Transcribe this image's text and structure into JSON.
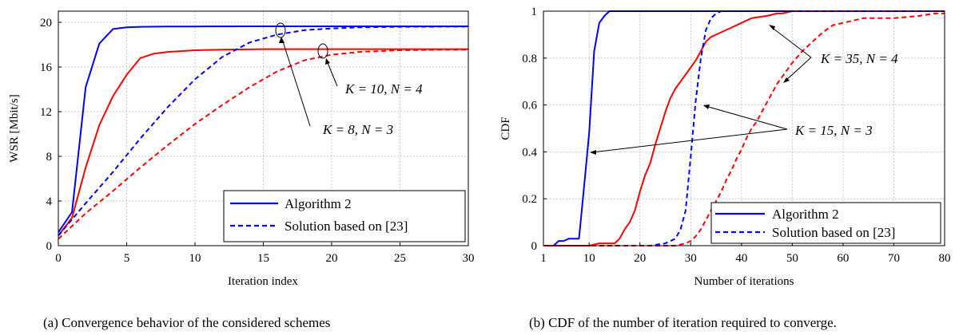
{
  "chart_data": [
    {
      "type": "line",
      "caption": "(a) Convergence behavior of the considered schemes",
      "xlabel": "Iteration index",
      "ylabel": "WSR [Mbit/s]",
      "xlim": [
        0,
        30
      ],
      "ylim": [
        0,
        21
      ],
      "xticks": [
        0,
        5,
        10,
        15,
        20,
        25,
        30
      ],
      "yticks": [
        0,
        4,
        8,
        12,
        16,
        20
      ],
      "grid": true,
      "legend_position": "bottom-right",
      "legend": [
        "Algorithm 2",
        "Solution based on [23]"
      ],
      "annotations": [
        "K = 10, N = 4",
        "K = 8, N = 3"
      ],
      "series": [
        {
          "legend": "Algorithm 2",
          "config": "K = 8, N = 3",
          "color": "#0000ff",
          "dash": "solid",
          "x": [
            0,
            1,
            2,
            3,
            4,
            5,
            6,
            8,
            10,
            15,
            20,
            25,
            30
          ],
          "y": [
            1.2,
            3.0,
            14.2,
            18.1,
            19.4,
            19.55,
            19.6,
            19.62,
            19.63,
            19.64,
            19.64,
            19.64,
            19.64
          ]
        },
        {
          "legend": "Algorithm 2",
          "config": "K = 10, N = 4",
          "color": "#ff0000",
          "dash": "solid",
          "x": [
            0,
            1,
            2,
            3,
            4,
            5,
            6,
            7,
            8,
            10,
            12,
            15,
            20,
            25,
            30
          ],
          "y": [
            0.9,
            2.5,
            7.0,
            10.8,
            13.4,
            15.3,
            16.8,
            17.2,
            17.35,
            17.5,
            17.55,
            17.6,
            17.6,
            17.6,
            17.6
          ]
        },
        {
          "legend": "Solution based on [23]",
          "config": "K = 8, N = 3",
          "color": "#0000ff",
          "dash": "dashed",
          "x": [
            0,
            2,
            4,
            6,
            8,
            10,
            12,
            14,
            16,
            18,
            20,
            22,
            25,
            30
          ],
          "y": [
            0.9,
            3.8,
            6.6,
            9.6,
            12.4,
            14.9,
            16.9,
            18.2,
            18.9,
            19.3,
            19.45,
            19.55,
            19.6,
            19.62
          ]
        },
        {
          "legend": "Solution based on [23]",
          "config": "K = 10, N = 4",
          "color": "#ff0000",
          "dash": "dashed",
          "x": [
            0,
            2,
            4,
            6,
            8,
            10,
            12,
            14,
            16,
            18,
            20,
            22,
            25,
            28,
            30
          ],
          "y": [
            0.6,
            2.9,
            4.9,
            7.0,
            9.0,
            10.9,
            12.6,
            14.2,
            15.6,
            16.6,
            17.1,
            17.35,
            17.5,
            17.55,
            17.55
          ]
        }
      ]
    },
    {
      "type": "line",
      "caption": "(b) CDF of the number of iteration required to converge.",
      "xlabel": "Number of iterations",
      "ylabel": "CDF",
      "xlim": [
        1,
        80
      ],
      "ylim": [
        0,
        1
      ],
      "xticks": [
        1,
        10,
        20,
        30,
        40,
        50,
        60,
        70,
        80
      ],
      "yticks": [
        0,
        0.2,
        0.4,
        0.6,
        0.8,
        1
      ],
      "grid": true,
      "legend_position": "bottom-left",
      "legend": [
        "Algorithm 2",
        "Solution based on [23]"
      ],
      "annotations": [
        "K = 35, N = 4",
        "K = 15, N = 3"
      ],
      "series": [
        {
          "legend": "Algorithm 2",
          "config": "K = 15, N = 3",
          "color": "#0000ff",
          "dash": "solid",
          "x": [
            1,
            3,
            4,
            5,
            6,
            7,
            8,
            9,
            10,
            11,
            12,
            13,
            14,
            15,
            20,
            80
          ],
          "y": [
            0,
            0,
            0.02,
            0.02,
            0.03,
            0.03,
            0.03,
            0.25,
            0.48,
            0.83,
            0.95,
            0.98,
            1.0,
            1.0,
            1.0,
            1.0
          ]
        },
        {
          "legend": "Algorithm 2",
          "config": "K = 35, N = 4",
          "color": "#ff0000",
          "dash": "solid",
          "x": [
            1,
            10,
            12,
            14,
            15,
            16,
            17,
            18,
            19,
            20,
            21,
            22,
            23,
            24,
            25,
            26,
            27,
            28,
            29,
            30,
            31,
            32,
            33,
            34,
            35,
            36,
            38,
            40,
            42,
            45,
            47,
            48,
            50,
            80
          ],
          "y": [
            0,
            0,
            0.01,
            0.01,
            0.01,
            0.03,
            0.07,
            0.1,
            0.15,
            0.23,
            0.3,
            0.35,
            0.43,
            0.5,
            0.57,
            0.63,
            0.67,
            0.7,
            0.73,
            0.76,
            0.79,
            0.83,
            0.87,
            0.89,
            0.9,
            0.91,
            0.93,
            0.95,
            0.97,
            0.98,
            0.99,
            0.99,
            1.0,
            1.0
          ]
        },
        {
          "legend": "Solution based on [23]",
          "config": "K = 15, N = 3",
          "color": "#0000ff",
          "dash": "dashed",
          "x": [
            1,
            22,
            25,
            27,
            28,
            29,
            30,
            31,
            32,
            33,
            34,
            35,
            36,
            38,
            80
          ],
          "y": [
            0,
            0,
            0.01,
            0.03,
            0.07,
            0.15,
            0.38,
            0.62,
            0.8,
            0.92,
            0.97,
            0.99,
            1.0,
            1.0,
            1.0
          ]
        },
        {
          "legend": "Solution based on [23]",
          "config": "K = 35, N = 4",
          "color": "#ff0000",
          "dash": "dashed",
          "x": [
            1,
            27,
            29,
            30,
            31,
            32,
            33,
            34,
            35,
            36,
            37,
            38,
            39,
            40,
            41,
            42,
            43,
            44,
            45,
            46,
            47,
            48,
            50,
            52,
            54,
            56,
            58,
            60,
            62,
            64,
            70,
            75,
            78,
            80
          ],
          "y": [
            0,
            0,
            0.01,
            0.02,
            0.04,
            0.07,
            0.11,
            0.15,
            0.19,
            0.23,
            0.28,
            0.32,
            0.37,
            0.41,
            0.46,
            0.5,
            0.53,
            0.57,
            0.61,
            0.65,
            0.69,
            0.72,
            0.78,
            0.83,
            0.87,
            0.91,
            0.94,
            0.95,
            0.96,
            0.97,
            0.97,
            0.98,
            0.99,
            0.99
          ]
        }
      ]
    }
  ]
}
